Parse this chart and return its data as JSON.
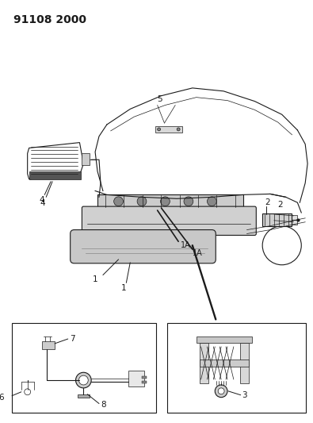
{
  "title": "91108 2000",
  "bg_color": "#ffffff",
  "line_color": "#1a1a1a",
  "title_fontsize": 10,
  "label_fontsize": 7.5,
  "fig_width": 3.95,
  "fig_height": 5.33,
  "dpi": 100
}
